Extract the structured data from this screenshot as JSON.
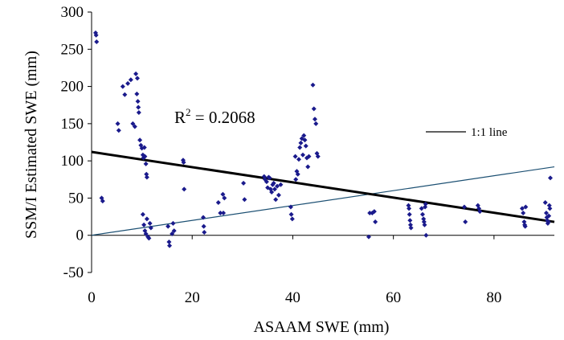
{
  "chart_data": {
    "type": "scatter",
    "xlabel": "ASAAM SWE (mm)",
    "ylabel": "SSM/I Estimated SWE (mm)",
    "xlim": [
      0,
      92
    ],
    "ylim": [
      -50,
      300
    ],
    "x_ticks": [
      0,
      20,
      40,
      60,
      80
    ],
    "y_ticks": [
      -50,
      0,
      50,
      100,
      150,
      200,
      250,
      300
    ],
    "grid": false,
    "legend_position": "right",
    "annotation": {
      "base": "R",
      "sup": "2",
      "rest": " = 0.2068"
    },
    "series": [
      {
        "type": "scatter",
        "color": "#1a1a8c",
        "marker": "diamond",
        "points": [
          [
            0.8,
            272
          ],
          [
            0.9,
            269
          ],
          [
            1.0,
            260
          ],
          [
            2.0,
            50
          ],
          [
            2.2,
            46
          ],
          [
            5.2,
            150
          ],
          [
            5.4,
            141
          ],
          [
            6.2,
            200
          ],
          [
            6.6,
            189
          ],
          [
            7.2,
            204
          ],
          [
            7.8,
            209
          ],
          [
            8.2,
            150
          ],
          [
            8.6,
            146
          ],
          [
            8.8,
            217
          ],
          [
            9.0,
            190
          ],
          [
            9.1,
            211
          ],
          [
            9.2,
            180
          ],
          [
            9.3,
            172
          ],
          [
            9.4,
            165
          ],
          [
            9.6,
            128
          ],
          [
            9.8,
            121
          ],
          [
            10.0,
            117
          ],
          [
            10.2,
            108
          ],
          [
            10.3,
            104
          ],
          [
            10.5,
            118
          ],
          [
            10.6,
            106
          ],
          [
            10.8,
            96
          ],
          [
            10.9,
            82
          ],
          [
            11.0,
            78
          ],
          [
            10.2,
            28
          ],
          [
            10.4,
            14
          ],
          [
            10.6,
            6
          ],
          [
            10.8,
            2
          ],
          [
            11.0,
            22
          ],
          [
            11.2,
            -2
          ],
          [
            11.4,
            -4
          ],
          [
            11.6,
            16
          ],
          [
            11.8,
            10
          ],
          [
            15.2,
            12
          ],
          [
            15.4,
            -9
          ],
          [
            15.5,
            -14
          ],
          [
            16.0,
            2
          ],
          [
            16.2,
            16
          ],
          [
            16.4,
            6
          ],
          [
            18.2,
            101
          ],
          [
            18.3,
            98
          ],
          [
            18.4,
            62
          ],
          [
            22.2,
            24
          ],
          [
            22.3,
            12
          ],
          [
            22.4,
            4
          ],
          [
            25.2,
            44
          ],
          [
            25.6,
            30
          ],
          [
            26.1,
            55
          ],
          [
            26.2,
            30
          ],
          [
            26.4,
            50
          ],
          [
            30.2,
            70
          ],
          [
            30.4,
            48
          ],
          [
            34.3,
            79
          ],
          [
            34.5,
            75
          ],
          [
            34.8,
            72
          ],
          [
            35.0,
            64
          ],
          [
            35.2,
            78
          ],
          [
            35.4,
            77
          ],
          [
            35.6,
            62
          ],
          [
            35.8,
            58
          ],
          [
            36.0,
            68
          ],
          [
            36.2,
            70
          ],
          [
            36.4,
            62
          ],
          [
            36.6,
            48
          ],
          [
            36.9,
            66
          ],
          [
            37.2,
            54
          ],
          [
            37.6,
            68
          ],
          [
            39.6,
            38
          ],
          [
            39.7,
            28
          ],
          [
            39.9,
            22
          ],
          [
            40.5,
            106
          ],
          [
            40.6,
            75
          ],
          [
            40.8,
            86
          ],
          [
            41.0,
            82
          ],
          [
            41.2,
            102
          ],
          [
            41.4,
            118
          ],
          [
            41.6,
            124
          ],
          [
            41.8,
            130
          ],
          [
            42.0,
            108
          ],
          [
            42.2,
            134
          ],
          [
            42.4,
            128
          ],
          [
            42.6,
            120
          ],
          [
            42.8,
            104
          ],
          [
            43.0,
            92
          ],
          [
            43.2,
            106
          ],
          [
            44.0,
            202
          ],
          [
            44.2,
            170
          ],
          [
            44.4,
            156
          ],
          [
            44.6,
            150
          ],
          [
            44.8,
            110
          ],
          [
            45.0,
            106
          ],
          [
            55.1,
            -2
          ],
          [
            55.3,
            30
          ],
          [
            55.8,
            30
          ],
          [
            56.2,
            32
          ],
          [
            56.4,
            18
          ],
          [
            63.0,
            40
          ],
          [
            63.1,
            36
          ],
          [
            63.2,
            28
          ],
          [
            63.3,
            20
          ],
          [
            63.4,
            14
          ],
          [
            63.5,
            10
          ],
          [
            65.6,
            36
          ],
          [
            65.8,
            28
          ],
          [
            66.0,
            22
          ],
          [
            66.1,
            18
          ],
          [
            66.2,
            14
          ],
          [
            66.3,
            38
          ],
          [
            66.4,
            42
          ],
          [
            66.5,
            0
          ],
          [
            74.1,
            38
          ],
          [
            74.3,
            18
          ],
          [
            76.8,
            40
          ],
          [
            77.0,
            36
          ],
          [
            77.2,
            32
          ],
          [
            85.6,
            36
          ],
          [
            85.8,
            30
          ],
          [
            86.0,
            18
          ],
          [
            86.1,
            14
          ],
          [
            86.2,
            12
          ],
          [
            86.3,
            38
          ],
          [
            90.2,
            44
          ],
          [
            90.4,
            30
          ],
          [
            90.5,
            24
          ],
          [
            90.6,
            20
          ],
          [
            90.7,
            16
          ],
          [
            90.8,
            18
          ],
          [
            90.9,
            26
          ],
          [
            91.0,
            40
          ],
          [
            91.1,
            36
          ],
          [
            91.2,
            77
          ]
        ]
      },
      {
        "type": "line",
        "name": "1:1 line",
        "color": "#1b4f72",
        "points": [
          [
            0,
            0
          ],
          [
            92,
            92
          ]
        ]
      },
      {
        "type": "line",
        "color": "#000000",
        "points": [
          [
            0,
            112
          ],
          [
            92,
            18
          ]
        ]
      }
    ]
  }
}
